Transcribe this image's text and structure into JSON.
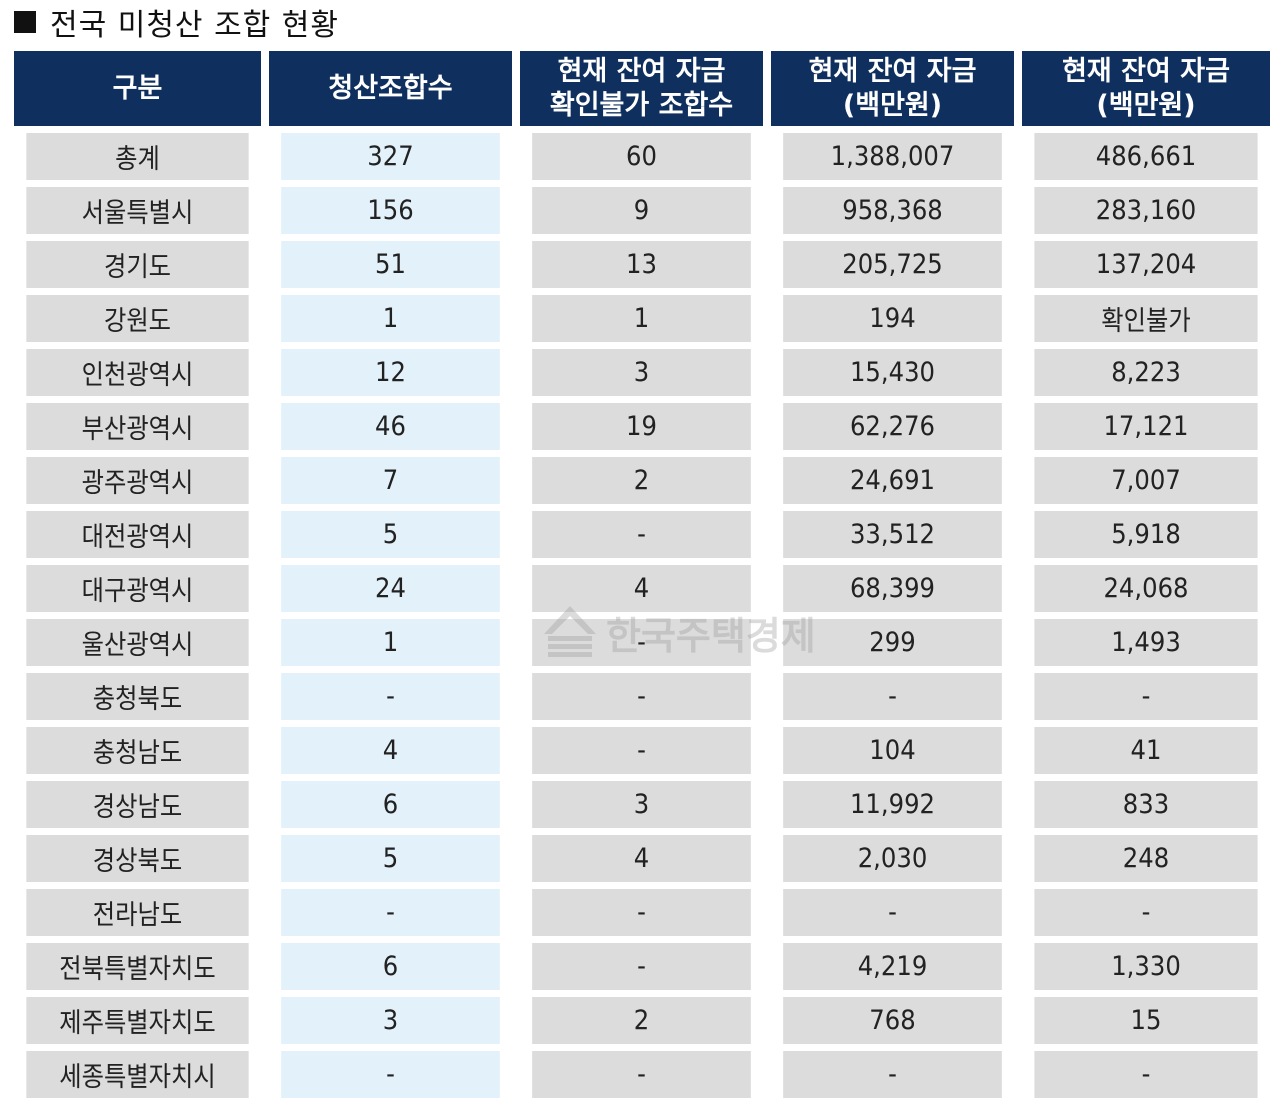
{
  "title": "전국 미청산 조합 현황",
  "watermark": "한국주택경제",
  "headers": [
    "구분",
    "청산조합수",
    "현재 잔여 자금\n확인불가 조합수",
    "현재 잔여 자금\n(백만원)",
    "현재 잔여 자금\n(백만원)"
  ],
  "rows": [
    [
      "총계",
      "327",
      "60",
      "1,388,007",
      "486,661"
    ],
    [
      "서울특별시",
      "156",
      "9",
      "958,368",
      "283,160"
    ],
    [
      "경기도",
      "51",
      "13",
      "205,725",
      "137,204"
    ],
    [
      "강원도",
      "1",
      "1",
      "194",
      "확인불가"
    ],
    [
      "인천광역시",
      "12",
      "3",
      "15,430",
      "8,223"
    ],
    [
      "부산광역시",
      "46",
      "19",
      "62,276",
      "17,121"
    ],
    [
      "광주광역시",
      "7",
      "2",
      "24,691",
      "7,007"
    ],
    [
      "대전광역시",
      "5",
      "-",
      "33,512",
      "5,918"
    ],
    [
      "대구광역시",
      "24",
      "4",
      "68,399",
      "24,068"
    ],
    [
      "울산광역시",
      "1",
      "-",
      "299",
      "1,493"
    ],
    [
      "충청북도",
      "-",
      "-",
      "-",
      "-"
    ],
    [
      "충청남도",
      "4",
      "-",
      "104",
      "41"
    ],
    [
      "경상남도",
      "6",
      "3",
      "11,992",
      "833"
    ],
    [
      "경상북도",
      "5",
      "4",
      "2,030",
      "248"
    ],
    [
      "전라남도",
      "-",
      "-",
      "-",
      "-"
    ],
    [
      "전북특별자치도",
      "6",
      "-",
      "4,219",
      "1,330"
    ],
    [
      "제주특별자치도",
      "3",
      "2",
      "768",
      "15"
    ],
    [
      "세종특별자치시",
      "-",
      "-",
      "-",
      "-"
    ]
  ]
}
